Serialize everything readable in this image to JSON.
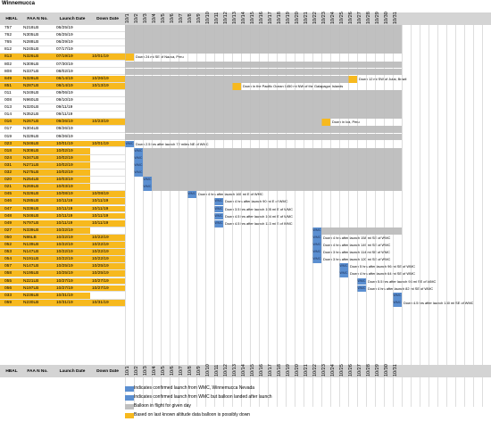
{
  "title": "Winnemucca",
  "headers": {
    "hbal": "HBAL",
    "faa": "FAA N No.",
    "launch": "Launch Date",
    "down": "Down Date"
  },
  "dates": [
    "10/1",
    "10/2",
    "10/3",
    "10/4",
    "10/5",
    "10/6",
    "10/7",
    "10/8",
    "10/9",
    "10/10",
    "10/11",
    "10/12",
    "10/13",
    "10/14",
    "10/15",
    "10/16",
    "10/17",
    "10/18",
    "10/19",
    "10/20",
    "10/21",
    "10/22",
    "10/23",
    "10/24",
    "10/25",
    "10/26",
    "10/27",
    "10/28",
    "10/29",
    "10/30",
    "10/31"
  ],
  "rows": [
    {
      "hbal": "757",
      "faa": "N218LB",
      "launch": "06/25/19",
      "down": "",
      "launch_org": false,
      "down_org": false
    },
    {
      "hbal": "762",
      "faa": "N305LB",
      "launch": "06/25/19",
      "down": ""
    },
    {
      "hbal": "765",
      "faa": "N288LB",
      "launch": "06/29/19",
      "down": ""
    },
    {
      "hbal": "812",
      "faa": "N245LB",
      "launch": "07/17/19",
      "down": ""
    },
    {
      "hbal": "813",
      "faa": "N326LB",
      "launch": "07/19/19",
      "down": "10/01/19",
      "launch_org": true,
      "down_org": true,
      "note": "Down 24 mi SE of Nazca, Peru"
    },
    {
      "hbal": "802",
      "faa": "N309LB",
      "launch": "07/30/19",
      "down": ""
    },
    {
      "hbal": "808",
      "faa": "N337LB",
      "launch": "08/02/19",
      "down": ""
    },
    {
      "hbal": "849",
      "faa": "N328LB",
      "launch": "08/14/19",
      "down": "10/26/19",
      "launch_org": true,
      "down_org": true,
      "note": "Down 12 mi SW of Jutai, Brazil"
    },
    {
      "hbal": "851",
      "faa": "N287LB",
      "launch": "08/14/19",
      "down": "10/13/19",
      "launch_org": true,
      "down_org": true,
      "note": "Down in the Pacific Ocean 1450 mi NW of the Galapagos Islands"
    },
    {
      "hbal": "011",
      "faa": "N349LB",
      "launch": "09/06/19",
      "down": ""
    },
    {
      "hbal": "008",
      "faa": "N960LB",
      "launch": "09/10/19",
      "down": ""
    },
    {
      "hbal": "013",
      "faa": "N320LB",
      "launch": "09/11/19",
      "down": ""
    },
    {
      "hbal": "014",
      "faa": "N352LB",
      "launch": "09/11/19",
      "down": ""
    },
    {
      "hbal": "016",
      "faa": "N267LB",
      "launch": "09/26/19",
      "down": "10/23/19",
      "launch_org": true,
      "down_org": true,
      "note": "Down in Ica, Peru"
    },
    {
      "hbal": "017",
      "faa": "N304LB",
      "launch": "09/26/19",
      "down": ""
    },
    {
      "hbal": "019",
      "faa": "N329LB",
      "launch": "09/26/19",
      "down": ""
    },
    {
      "hbal": "023",
      "faa": "N346LB",
      "launch": "10/01/19",
      "down": "10/01/19",
      "launch_org": true,
      "down_org": true,
      "note": "Down 2.5 hrs after launch 72 miles NE of WMC"
    },
    {
      "hbal": "018",
      "faa": "N308LB",
      "launch": "10/02/19",
      "down": "",
      "launch_org": true
    },
    {
      "hbal": "024",
      "faa": "N347LB",
      "launch": "10/02/19",
      "down": "",
      "launch_org": true
    },
    {
      "hbal": "031",
      "faa": "N271LB",
      "launch": "10/02/19",
      "down": "",
      "launch_org": true
    },
    {
      "hbal": "032",
      "faa": "N275LB",
      "launch": "10/02/19",
      "down": "",
      "launch_org": true
    },
    {
      "hbal": "020",
      "faa": "N254LB",
      "launch": "10/03/19",
      "down": "",
      "launch_org": true
    },
    {
      "hbal": "021",
      "faa": "N269LB",
      "launch": "10/03/19",
      "down": "",
      "launch_org": true
    },
    {
      "hbal": "045",
      "faa": "N326LB",
      "launch": "10/08/19",
      "down": "10/08/19",
      "launch_org": true,
      "down_org": true,
      "note": "Down 4 hrs after launch 165 mi E of WMC"
    },
    {
      "hbal": "046",
      "faa": "N285LB",
      "launch": "10/11/19",
      "down": "10/11/19",
      "launch_org": true,
      "down_org": true,
      "note": "Down 4 hrs after launch 90 mi E of WMC"
    },
    {
      "hbal": "047",
      "faa": "N336LB",
      "launch": "10/11/19",
      "down": "10/11/19",
      "launch_org": true,
      "down_org": true,
      "note": "Down 3.5 hrs after launch 105 mi E of WMC"
    },
    {
      "hbal": "048",
      "faa": "N346LB",
      "launch": "10/11/19",
      "down": "10/11/19",
      "launch_org": true,
      "down_org": true,
      "note": "Down 4.5 hrs after launch 104 mi E of WMC"
    },
    {
      "hbal": "049",
      "faa": "N797LB",
      "launch": "10/11/19",
      "down": "10/11/19",
      "launch_org": true,
      "down_org": true,
      "note": "Down 4.5 hrs after launch 113 mi E of WMC"
    },
    {
      "hbal": "027",
      "faa": "N339LB",
      "launch": "10/22/19",
      "down": "",
      "launch_org": true
    },
    {
      "hbal": "050",
      "faa": "N86LB",
      "launch": "10/22/19",
      "down": "10/22/19",
      "launch_org": true,
      "down_org": true,
      "note": "Down 4 hrs after launch 158 mi SE of WMC"
    },
    {
      "hbal": "052",
      "faa": "N139LB",
      "launch": "10/22/19",
      "down": "10/22/19",
      "launch_org": true,
      "down_org": true,
      "note": "Down 4 hrs after launch 149 mi SE of WMC"
    },
    {
      "hbal": "053",
      "faa": "N147LB",
      "launch": "10/22/19",
      "down": "10/22/19",
      "launch_org": true,
      "down_org": true,
      "note": "Down 3 hrs after launch 114 mi SE of WMC"
    },
    {
      "hbal": "054",
      "faa": "N191LB",
      "launch": "10/22/19",
      "down": "10/22/19",
      "launch_org": true,
      "down_org": true,
      "note": "Down 3 hrs after launch 120 mi SE of WMC"
    },
    {
      "hbal": "057",
      "faa": "N147LB",
      "launch": "10/25/19",
      "down": "10/25/19",
      "launch_org": true,
      "down_org": true,
      "note": "Down 5 hrs after launch 96 mi SE of WMC"
    },
    {
      "hbal": "058",
      "faa": "N195LB",
      "launch": "10/25/19",
      "down": "10/25/19",
      "launch_org": true,
      "down_org": true,
      "note": "Down 4 hrs after launch 64 mi SE of WMC"
    },
    {
      "hbal": "055",
      "faa": "N221LB",
      "launch": "10/27/19",
      "down": "10/27/19",
      "launch_org": true,
      "down_org": true,
      "note": "Down 5.5 hrs after launch 94 mi SE of WMC"
    },
    {
      "hbal": "056",
      "faa": "N197LB",
      "launch": "10/27/19",
      "down": "10/27/19",
      "launch_org": true,
      "down_org": true,
      "note": "Down 4 hrs after launch 82 mi SE of WMC"
    },
    {
      "hbal": "033",
      "faa": "N236LB",
      "launch": "10/31/19",
      "down": "",
      "launch_org": true
    },
    {
      "hbal": "059",
      "faa": "N230LB",
      "launch": "10/31/19",
      "down": "10/31/19",
      "launch_org": true,
      "down_org": true,
      "note": "Down 4.5 hrs after launch 140 mi SE of WMC"
    }
  ],
  "wmc_label": "WMC",
  "legend": [
    {
      "text": "Indicates confirmed launch from WMC, Winnemucca Nevada",
      "color": "#5b8fd1"
    },
    {
      "text": "Indicates confirmed launch from WMC but balloon landed after launch",
      "color": "#5b8fd1"
    },
    {
      "text": "Balloon in flight for given day",
      "color": "#c0c0c0"
    },
    {
      "text": "Based on last known altitude data balloon is possibly down",
      "color": "#f7b91e"
    }
  ],
  "colors": {
    "gray": "#c0c0c0",
    "orange": "#f7b91e",
    "blue": "#5b8fd1"
  }
}
